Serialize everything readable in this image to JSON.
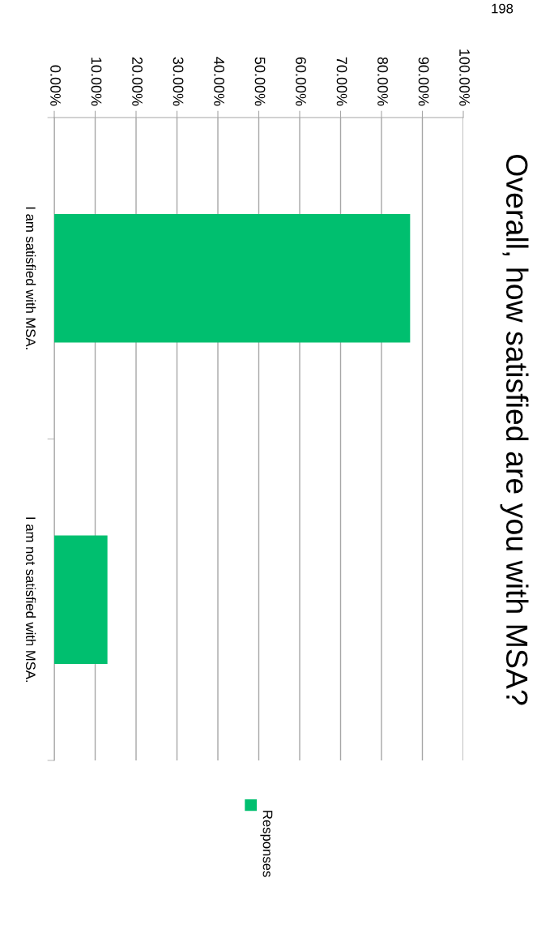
{
  "chart_data": {
    "type": "bar",
    "orientation": "horizontal",
    "title": "Overall, how satisfied are you with MSA?",
    "categories": [
      "I am satisfied with MSA.",
      "I am not satisfied with MSA."
    ],
    "series": [
      {
        "name": "Responses",
        "color": "#00bf6f",
        "values": [
          87,
          13
        ]
      }
    ],
    "xlim": [
      0,
      100
    ],
    "xticks": [
      {
        "value": 0,
        "label": "0.00%"
      },
      {
        "value": 10,
        "label": "10.00%"
      },
      {
        "value": 20,
        "label": "20.00%"
      },
      {
        "value": 30,
        "label": "30.00%"
      },
      {
        "value": 40,
        "label": "40.00%"
      },
      {
        "value": 50,
        "label": "50.00%"
      },
      {
        "value": 60,
        "label": "60.00%"
      },
      {
        "value": 70,
        "label": "70.00%"
      },
      {
        "value": 80,
        "label": "80.00%"
      },
      {
        "value": 90,
        "label": "90.00%"
      },
      {
        "value": 100,
        "label": "100.00%"
      }
    ],
    "grid": "x",
    "legend": "bottom",
    "annotations": [
      "198"
    ]
  }
}
